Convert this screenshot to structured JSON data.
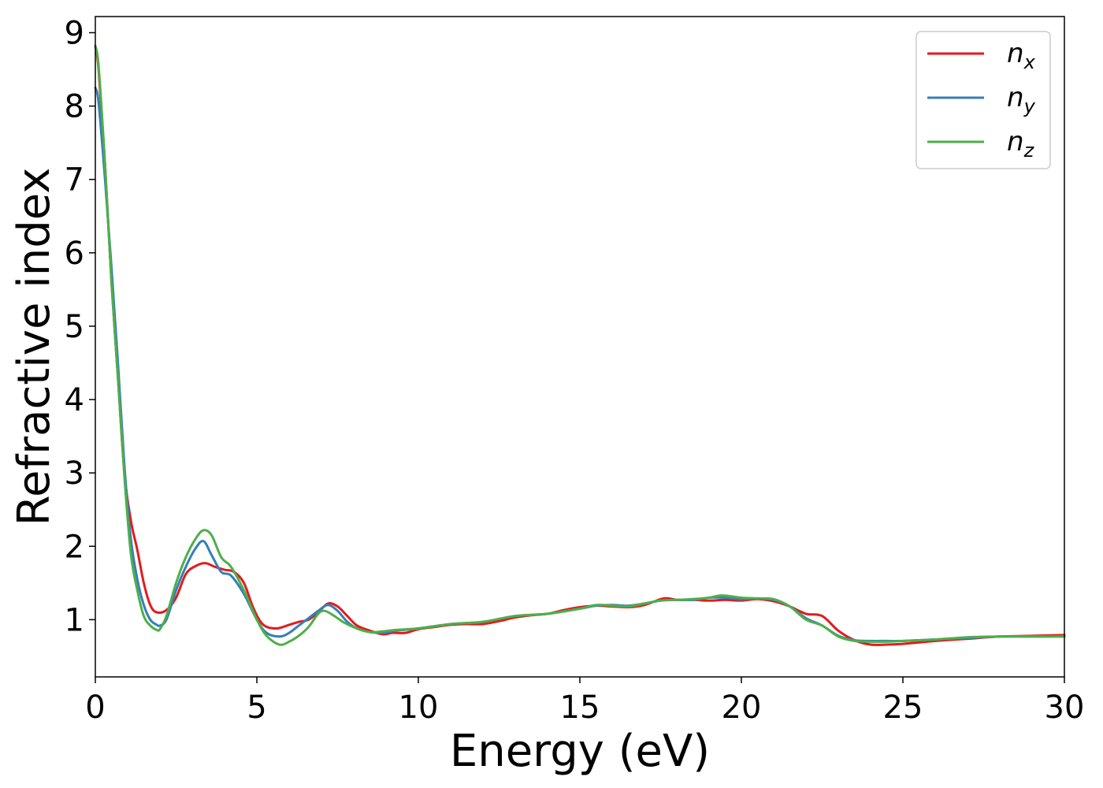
{
  "chart_data": {
    "type": "line",
    "xlabel": "Energy (eV)",
    "ylabel": "Refractive index",
    "xlim": [
      0,
      30
    ],
    "ylim": [
      0.22,
      9.22
    ],
    "xticks": [
      0,
      5,
      10,
      15,
      20,
      25,
      30
    ],
    "yticks": [
      1,
      2,
      3,
      4,
      5,
      6,
      7,
      8,
      9
    ],
    "grid": false,
    "legend_position": "top-right",
    "series": [
      {
        "name": "n_x",
        "legend_base": "n",
        "legend_sub": "x",
        "color": "#e41a1c",
        "x": [
          0,
          0.1,
          0.3,
          0.5,
          0.7,
          0.9,
          1.1,
          1.3,
          1.5,
          1.7,
          1.9,
          2.2,
          2.5,
          2.8,
          3.1,
          3.4,
          3.7,
          4.0,
          4.3,
          4.6,
          4.9,
          5.2,
          5.6,
          6.0,
          6.3,
          6.6,
          6.9,
          7.2,
          7.5,
          7.8,
          8.1,
          8.5,
          8.9,
          9.2,
          9.6,
          10.0,
          10.5,
          11.0,
          11.5,
          12.0,
          12.5,
          13.0,
          13.5,
          14.0,
          14.5,
          15.0,
          15.5,
          16.0,
          16.5,
          17.0,
          17.6,
          18.0,
          18.5,
          19.0,
          19.5,
          20.0,
          20.5,
          21.0,
          21.5,
          22.0,
          22.5,
          23.0,
          23.5,
          24.0,
          24.5,
          25.0,
          25.5,
          26.0,
          27.0,
          28.0,
          29.0,
          30.0
        ],
        "y": [
          8.82,
          8.5,
          7.2,
          5.6,
          4.3,
          3.0,
          2.35,
          1.95,
          1.5,
          1.2,
          1.1,
          1.13,
          1.3,
          1.62,
          1.73,
          1.77,
          1.72,
          1.68,
          1.65,
          1.5,
          1.15,
          0.93,
          0.88,
          0.93,
          0.97,
          1.0,
          1.1,
          1.22,
          1.18,
          1.05,
          0.92,
          0.85,
          0.8,
          0.82,
          0.82,
          0.87,
          0.9,
          0.93,
          0.94,
          0.94,
          0.98,
          1.03,
          1.06,
          1.08,
          1.13,
          1.17,
          1.19,
          1.18,
          1.17,
          1.2,
          1.29,
          1.27,
          1.27,
          1.26,
          1.27,
          1.26,
          1.28,
          1.25,
          1.18,
          1.08,
          1.05,
          0.85,
          0.72,
          0.66,
          0.66,
          0.67,
          0.69,
          0.71,
          0.74,
          0.77,
          0.78,
          0.79
        ]
      },
      {
        "name": "n_y",
        "legend_base": "n",
        "legend_sub": "y",
        "color": "#377eb8",
        "x": [
          0,
          0.1,
          0.3,
          0.5,
          0.7,
          0.9,
          1.1,
          1.3,
          1.5,
          1.7,
          1.9,
          2.0,
          2.2,
          2.5,
          2.8,
          3.1,
          3.35,
          3.6,
          3.9,
          4.2,
          4.6,
          5.0,
          5.3,
          5.7,
          6.0,
          6.3,
          6.6,
          6.9,
          7.2,
          7.5,
          7.8,
          8.1,
          8.5,
          8.9,
          9.3,
          10.0,
          11.0,
          12.0,
          13.0,
          14.0,
          15.0,
          15.5,
          16.0,
          16.5,
          17.0,
          17.5,
          18.0,
          18.5,
          19.0,
          19.5,
          20.0,
          20.5,
          21.0,
          21.5,
          22.0,
          22.5,
          23.0,
          23.5,
          24.0,
          24.5,
          25.0,
          26.0,
          27.0,
          28.0,
          29.0,
          30.0
        ],
        "y": [
          8.25,
          8.05,
          7.0,
          5.8,
          4.5,
          3.1,
          2.1,
          1.55,
          1.2,
          1.0,
          0.93,
          0.92,
          1.0,
          1.4,
          1.72,
          1.97,
          2.07,
          1.88,
          1.65,
          1.6,
          1.35,
          1.0,
          0.82,
          0.77,
          0.82,
          0.92,
          1.02,
          1.12,
          1.2,
          1.12,
          0.97,
          0.88,
          0.83,
          0.82,
          0.85,
          0.88,
          0.94,
          0.97,
          1.05,
          1.08,
          1.15,
          1.19,
          1.2,
          1.19,
          1.22,
          1.26,
          1.27,
          1.27,
          1.3,
          1.3,
          1.28,
          1.29,
          1.27,
          1.18,
          1.02,
          0.92,
          0.78,
          0.72,
          0.71,
          0.71,
          0.71,
          0.73,
          0.75,
          0.77,
          0.77,
          0.77
        ]
      },
      {
        "name": "n_z",
        "legend_base": "n",
        "legend_sub": "z",
        "color": "#4daf4a",
        "x": [
          0,
          0.1,
          0.3,
          0.5,
          0.7,
          0.9,
          1.1,
          1.3,
          1.5,
          1.7,
          1.9,
          2.0,
          2.2,
          2.5,
          2.8,
          3.1,
          3.35,
          3.6,
          3.9,
          4.2,
          4.6,
          5.0,
          5.3,
          5.7,
          6.0,
          6.3,
          6.6,
          6.9,
          7.1,
          7.4,
          7.7,
          8.1,
          8.5,
          8.9,
          9.3,
          10.0,
          11.0,
          12.0,
          13.0,
          14.0,
          15.0,
          15.5,
          16.0,
          16.5,
          17.0,
          17.5,
          18.0,
          18.5,
          19.0,
          19.4,
          20.0,
          20.5,
          21.0,
          21.5,
          22.0,
          22.5,
          23.0,
          23.5,
          24.0,
          24.5,
          25.0,
          26.0,
          27.0,
          28.0,
          29.0,
          30.0
        ],
        "y": [
          8.82,
          8.55,
          7.2,
          5.6,
          4.3,
          2.95,
          1.9,
          1.4,
          1.05,
          0.92,
          0.86,
          0.87,
          1.05,
          1.5,
          1.85,
          2.1,
          2.22,
          2.15,
          1.85,
          1.72,
          1.4,
          1.0,
          0.78,
          0.66,
          0.7,
          0.78,
          0.9,
          1.08,
          1.12,
          1.05,
          0.96,
          0.88,
          0.83,
          0.84,
          0.86,
          0.88,
          0.94,
          0.97,
          1.05,
          1.08,
          1.15,
          1.2,
          1.19,
          1.18,
          1.22,
          1.26,
          1.27,
          1.28,
          1.3,
          1.33,
          1.3,
          1.29,
          1.28,
          1.18,
          1.0,
          0.92,
          0.77,
          0.71,
          0.7,
          0.7,
          0.71,
          0.73,
          0.76,
          0.77,
          0.77,
          0.77
        ]
      }
    ]
  }
}
